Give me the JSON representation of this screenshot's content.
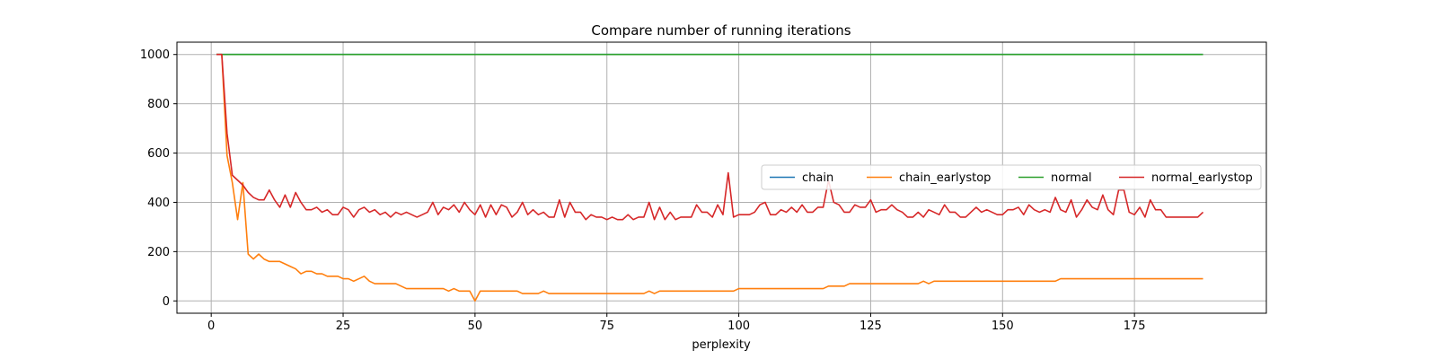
{
  "chart_data": {
    "type": "line",
    "title": "Compare number of running iterations",
    "xlabel": "perplexity",
    "ylabel": "",
    "xlim": [
      -6.5,
      200
    ],
    "ylim": [
      -50,
      1050
    ],
    "xticks": [
      0,
      25,
      50,
      75,
      100,
      125,
      150,
      175
    ],
    "yticks": [
      0,
      200,
      400,
      600,
      800,
      1000
    ],
    "grid": true,
    "legend_position": "center-right",
    "series": [
      {
        "name": "chain",
        "color": "#1f77b4",
        "x": [
          1,
          188
        ],
        "y": [
          1000,
          1000
        ]
      },
      {
        "name": "chain_earlystop",
        "color": "#ff7f0e",
        "x": [
          1,
          2,
          3,
          4,
          5,
          6,
          7,
          8,
          9,
          10,
          11,
          12,
          13,
          14,
          15,
          16,
          17,
          18,
          19,
          20,
          21,
          22,
          23,
          24,
          25,
          26,
          27,
          28,
          29,
          30,
          31,
          32,
          33,
          34,
          35,
          36,
          37,
          38,
          39,
          40,
          41,
          42,
          43,
          44,
          45,
          46,
          47,
          48,
          49,
          50,
          51,
          52,
          53,
          54,
          55,
          56,
          57,
          58,
          59,
          60,
          61,
          62,
          63,
          64,
          65,
          66,
          67,
          68,
          69,
          70,
          71,
          72,
          73,
          74,
          75,
          76,
          77,
          78,
          79,
          80,
          81,
          82,
          83,
          84,
          85,
          86,
          87,
          88,
          89,
          90,
          91,
          92,
          93,
          94,
          95,
          96,
          97,
          98,
          99,
          100,
          101,
          102,
          103,
          104,
          105,
          106,
          107,
          108,
          109,
          110,
          111,
          112,
          113,
          114,
          115,
          116,
          117,
          118,
          119,
          120,
          121,
          122,
          123,
          124,
          125,
          126,
          127,
          128,
          129,
          130,
          131,
          132,
          133,
          134,
          135,
          136,
          137,
          138,
          139,
          140,
          141,
          142,
          143,
          144,
          145,
          146,
          147,
          148,
          149,
          150,
          151,
          152,
          153,
          154,
          155,
          156,
          157,
          158,
          159,
          160,
          161,
          162,
          163,
          164,
          165,
          166,
          167,
          168,
          169,
          170,
          171,
          172,
          173,
          174,
          175,
          176,
          177,
          178,
          179,
          180,
          181,
          182,
          183,
          184,
          185,
          186,
          187,
          188
        ],
        "y": [
          1000,
          1000,
          590,
          480,
          330,
          480,
          190,
          170,
          190,
          170,
          160,
          160,
          160,
          150,
          140,
          130,
          110,
          120,
          120,
          110,
          110,
          100,
          100,
          100,
          90,
          90,
          80,
          90,
          100,
          80,
          70,
          70,
          70,
          70,
          70,
          60,
          50,
          50,
          50,
          50,
          50,
          50,
          50,
          50,
          40,
          50,
          40,
          40,
          40,
          0,
          40,
          40,
          40,
          40,
          40,
          40,
          40,
          40,
          30,
          30,
          30,
          30,
          40,
          30,
          30,
          30,
          30,
          30,
          30,
          30,
          30,
          30,
          30,
          30,
          30,
          30,
          30,
          30,
          30,
          30,
          30,
          30,
          40,
          30,
          40,
          40,
          40,
          40,
          40,
          40,
          40,
          40,
          40,
          40,
          40,
          40,
          40,
          40,
          40,
          50,
          50,
          50,
          50,
          50,
          50,
          50,
          50,
          50,
          50,
          50,
          50,
          50,
          50,
          50,
          50,
          50,
          60,
          60,
          60,
          60,
          70,
          70,
          70,
          70,
          70,
          70,
          70,
          70,
          70,
          70,
          70,
          70,
          70,
          70,
          80,
          70,
          80,
          80,
          80,
          80,
          80,
          80,
          80,
          80,
          80,
          80,
          80,
          80,
          80,
          80,
          80,
          80,
          80,
          80,
          80,
          80,
          80,
          80,
          80,
          80,
          90,
          90,
          90,
          90,
          90,
          90,
          90,
          90,
          90,
          90,
          90,
          90,
          90,
          90,
          90,
          90,
          90,
          90,
          90,
          90,
          90,
          90,
          90,
          90,
          90,
          90,
          90,
          90
        ]
      },
      {
        "name": "normal",
        "color": "#2ca02c",
        "x": [
          1,
          188
        ],
        "y": [
          1000,
          1000
        ]
      },
      {
        "name": "normal_earlystop",
        "color": "#d62728",
        "x": [
          1,
          2,
          3,
          4,
          5,
          6,
          7,
          8,
          9,
          10,
          11,
          12,
          13,
          14,
          15,
          16,
          17,
          18,
          19,
          20,
          21,
          22,
          23,
          24,
          25,
          26,
          27,
          28,
          29,
          30,
          31,
          32,
          33,
          34,
          35,
          36,
          37,
          38,
          39,
          40,
          41,
          42,
          43,
          44,
          45,
          46,
          47,
          48,
          49,
          50,
          51,
          52,
          53,
          54,
          55,
          56,
          57,
          58,
          59,
          60,
          61,
          62,
          63,
          64,
          65,
          66,
          67,
          68,
          69,
          70,
          71,
          72,
          73,
          74,
          75,
          76,
          77,
          78,
          79,
          80,
          81,
          82,
          83,
          84,
          85,
          86,
          87,
          88,
          89,
          90,
          91,
          92,
          93,
          94,
          95,
          96,
          97,
          98,
          99,
          100,
          101,
          102,
          103,
          104,
          105,
          106,
          107,
          108,
          109,
          110,
          111,
          112,
          113,
          114,
          115,
          116,
          117,
          118,
          119,
          120,
          121,
          122,
          123,
          124,
          125,
          126,
          127,
          128,
          129,
          130,
          131,
          132,
          133,
          134,
          135,
          136,
          137,
          138,
          139,
          140,
          141,
          142,
          143,
          144,
          145,
          146,
          147,
          148,
          149,
          150,
          151,
          152,
          153,
          154,
          155,
          156,
          157,
          158,
          159,
          160,
          161,
          162,
          163,
          164,
          165,
          166,
          167,
          168,
          169,
          170,
          171,
          172,
          173,
          174,
          175,
          176,
          177,
          178,
          179,
          180,
          181,
          182,
          183,
          184,
          185,
          186,
          187,
          188
        ],
        "y": [
          1000,
          1000,
          680,
          510,
          490,
          470,
          440,
          420,
          410,
          410,
          450,
          410,
          380,
          430,
          380,
          440,
          400,
          370,
          370,
          380,
          360,
          370,
          350,
          350,
          380,
          370,
          340,
          370,
          380,
          360,
          370,
          350,
          360,
          340,
          360,
          350,
          360,
          350,
          340,
          350,
          360,
          400,
          350,
          380,
          370,
          390,
          360,
          400,
          370,
          350,
          390,
          340,
          390,
          350,
          390,
          380,
          340,
          360,
          400,
          350,
          370,
          350,
          360,
          340,
          340,
          410,
          340,
          400,
          360,
          360,
          330,
          350,
          340,
          340,
          330,
          340,
          330,
          330,
          350,
          330,
          340,
          340,
          400,
          330,
          380,
          330,
          360,
          330,
          340,
          340,
          340,
          390,
          360,
          360,
          340,
          390,
          350,
          520,
          340,
          350,
          350,
          350,
          360,
          390,
          400,
          350,
          350,
          370,
          360,
          380,
          360,
          390,
          360,
          360,
          380,
          380,
          490,
          400,
          390,
          360,
          360,
          390,
          380,
          380,
          410,
          360,
          370,
          370,
          390,
          370,
          360,
          340,
          340,
          360,
          340,
          370,
          360,
          350,
          390,
          360,
          360,
          340,
          340,
          360,
          380,
          360,
          370,
          360,
          350,
          350,
          370,
          370,
          380,
          350,
          390,
          370,
          360,
          370,
          360,
          420,
          370,
          360,
          410,
          340,
          370,
          410,
          380,
          370,
          430,
          370,
          350,
          450,
          450,
          360,
          350,
          380,
          340,
          410,
          370,
          370,
          340,
          340,
          340,
          340,
          340,
          340,
          340,
          360
        ]
      }
    ]
  }
}
